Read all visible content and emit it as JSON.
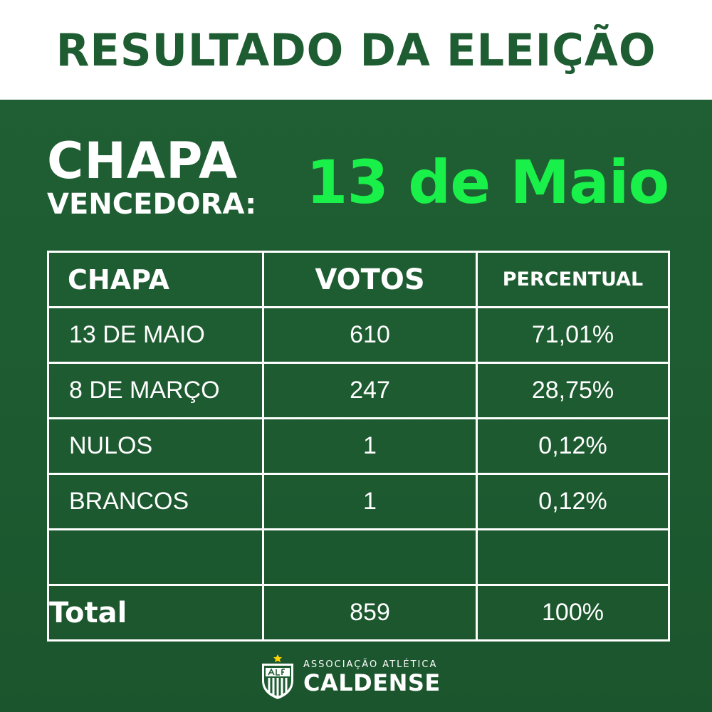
{
  "header": {
    "title": "RESULTADO DA ELEIÇÃO"
  },
  "winner": {
    "label_line1": "CHAPA",
    "label_line2": "VENCEDORA:",
    "name": "13 de Maio"
  },
  "table": {
    "headers": [
      "CHAPA",
      "VOTOS",
      "PERCENTUAL"
    ],
    "rows": [
      {
        "chapa": "13 DE MAIO",
        "votos": "610",
        "percentual": "71,01%"
      },
      {
        "chapa": "8 DE MARÇO",
        "votos": "247",
        "percentual": "28,75%"
      },
      {
        "chapa": "NULOS",
        "votos": "1",
        "percentual": "0,12%"
      },
      {
        "chapa": "BRANCOS",
        "votos": "1",
        "percentual": "0,12%"
      },
      {
        "chapa": "",
        "votos": "",
        "percentual": ""
      }
    ],
    "total": {
      "label": "Total",
      "votos": "859",
      "percentual": "100%"
    }
  },
  "footer": {
    "org_small": "ASSOCIAÇÃO ATLÉTICA",
    "org_big": "CALDENSE",
    "logo_icon": "caldense-crest-icon"
  },
  "colors": {
    "green_bg": "#1e5c31",
    "title_green": "#1e5c31",
    "winner_green": "#19f049",
    "white": "#ffffff"
  }
}
